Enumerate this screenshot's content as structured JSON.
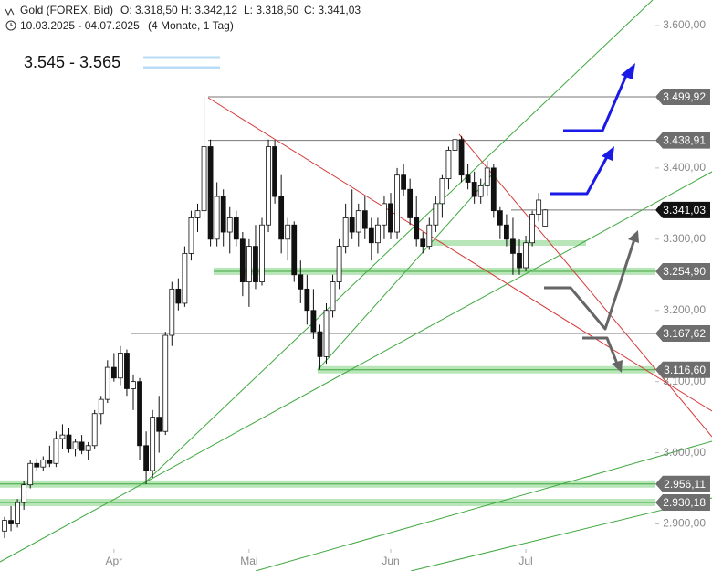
{
  "chart_data": {
    "type": "candlestick",
    "title": "Gold (FOREX, Bid)",
    "ohlc_header": [
      "O: 3.318,50",
      "H: 3.342,12",
      "L: 3.318,50",
      "C: 3.341,03"
    ],
    "date_range": "10.03.2025 - 04.07.2025",
    "period": "(4 Monate, 1 Tag)",
    "target_zone": "3.545 - 3.565",
    "categories": [
      null,
      null,
      null,
      null,
      null,
      null,
      null,
      null,
      null,
      null,
      null,
      null,
      null,
      null,
      null,
      null,
      null,
      "Apr",
      null,
      null,
      null,
      null,
      null,
      null,
      null,
      null,
      null,
      null,
      null,
      null,
      null,
      null,
      null,
      null,
      null,
      null,
      null,
      null,
      "Mai",
      null,
      null,
      null,
      null,
      null,
      null,
      null,
      null,
      null,
      null,
      null,
      null,
      null,
      null,
      null,
      null,
      null,
      null,
      null,
      null,
      null,
      "Jun",
      null,
      null,
      null,
      null,
      null,
      null,
      null,
      null,
      null,
      null,
      null,
      null,
      null,
      null,
      null,
      null,
      null,
      null,
      null,
      null,
      "Jul",
      null,
      null,
      null
    ],
    "open": [
      2890,
      2905,
      2900,
      2930,
      2955,
      2985,
      2980,
      2990,
      2985,
      3020,
      3025,
      3005,
      3015,
      3003,
      3010,
      3055,
      3075,
      3120,
      3105,
      3140,
      3090,
      3100,
      3010,
      2975,
      3050,
      3030,
      3165,
      3230,
      3210,
      3280,
      3330,
      3340,
      3430,
      3300,
      3360,
      3310,
      3330,
      3300,
      3240,
      3290,
      3240,
      3320,
      3430,
      3360,
      3300,
      3320,
      3250,
      3230,
      3200,
      3170,
      3135,
      3200,
      3240,
      3290,
      3330,
      3310,
      3340,
      3315,
      3295,
      3320,
      3350,
      3310,
      3390,
      3370,
      3330,
      3300,
      3290,
      3320,
      3350,
      3385,
      3425,
      3440,
      3390,
      3380,
      3360,
      3375,
      3400,
      3340,
      3320,
      3300,
      3280,
      3260,
      3295,
      3335,
      3318.5
    ],
    "high": [
      2910,
      2925,
      2935,
      2960,
      2990,
      2992,
      2995,
      3010,
      3030,
      3040,
      3035,
      3020,
      3025,
      3015,
      3060,
      3080,
      3130,
      3140,
      3150,
      3145,
      3110,
      3105,
      3030,
      3060,
      3080,
      3170,
      3240,
      3245,
      3290,
      3340,
      3350,
      3500,
      3440,
      3380,
      3370,
      3345,
      3340,
      3310,
      3300,
      3320,
      3330,
      3440,
      3439,
      3390,
      3330,
      3325,
      3270,
      3250,
      3230,
      3180,
      3210,
      3250,
      3300,
      3350,
      3370,
      3350,
      3360,
      3330,
      3330,
      3360,
      3365,
      3400,
      3405,
      3385,
      3360,
      3310,
      3330,
      3360,
      3390,
      3430,
      3452,
      3445,
      3405,
      3395,
      3385,
      3410,
      3405,
      3345,
      3335,
      3330,
      3300,
      3305,
      3340,
      3365,
      3342.12
    ],
    "low": [
      2880,
      2890,
      2895,
      2920,
      2950,
      2975,
      2975,
      2980,
      2980,
      3005,
      3000,
      2995,
      2998,
      2990,
      3005,
      3040,
      3070,
      3100,
      3095,
      3080,
      3060,
      2990,
      2956,
      2965,
      3000,
      3025,
      3150,
      3200,
      3205,
      3270,
      3310,
      3330,
      3290,
      3290,
      3290,
      3280,
      3290,
      3220,
      3205,
      3230,
      3235,
      3310,
      3350,
      3280,
      3270,
      3240,
      3210,
      3180,
      3160,
      3117,
      3125,
      3190,
      3230,
      3280,
      3300,
      3290,
      3300,
      3270,
      3280,
      3300,
      3300,
      3300,
      3360,
      3320,
      3290,
      3280,
      3285,
      3310,
      3330,
      3370,
      3400,
      3380,
      3370,
      3350,
      3350,
      3360,
      3330,
      3300,
      3290,
      3250,
      3250,
      3255,
      3290,
      3325,
      3318.5
    ],
    "close": [
      2905,
      2900,
      2930,
      2955,
      2985,
      2980,
      2990,
      2985,
      3020,
      3025,
      3005,
      3015,
      3003,
      3010,
      3055,
      3075,
      3120,
      3105,
      3140,
      3090,
      3100,
      3010,
      2975,
      3050,
      3030,
      3165,
      3230,
      3210,
      3280,
      3330,
      3340,
      3430,
      3300,
      3360,
      3310,
      3330,
      3300,
      3240,
      3290,
      3240,
      3320,
      3430,
      3360,
      3300,
      3320,
      3250,
      3230,
      3200,
      3170,
      3135,
      3200,
      3240,
      3290,
      3330,
      3310,
      3340,
      3315,
      3295,
      3320,
      3350,
      3310,
      3390,
      3370,
      3330,
      3300,
      3290,
      3320,
      3350,
      3385,
      3425,
      3440,
      3390,
      3380,
      3360,
      3375,
      3400,
      3340,
      3320,
      3300,
      3280,
      3260,
      3295,
      3335,
      3355,
      3341.03
    ],
    "up_color": "#ffffff",
    "down_color": "#111111",
    "ylim": [
      2866,
      3636
    ],
    "yticks": [
      {
        "value": 2900,
        "label": "2.900,00"
      },
      {
        "value": 3000,
        "label": "3.000,00"
      },
      {
        "value": 3100,
        "label": "3.100,00"
      },
      {
        "value": 3200,
        "label": "3.200,00"
      },
      {
        "value": 3300,
        "label": "3.300,00"
      },
      {
        "value": 3400,
        "label": "3.400,00"
      },
      {
        "value": 3600,
        "label": "3.600,00"
      }
    ],
    "price_levels": [
      {
        "value": 3499.92,
        "label": "3.499,92"
      },
      {
        "value": 3438.91,
        "label": "3.438,91"
      },
      {
        "value": 3341.03,
        "label": "3.341,03"
      },
      {
        "value": 3254.9,
        "label": "3.254,90"
      },
      {
        "value": 3167.62,
        "label": "3.167,62"
      },
      {
        "value": 3116.6,
        "label": "3.116,60"
      },
      {
        "value": 2956.11,
        "label": "2.956,11"
      },
      {
        "value": 2930.18,
        "label": "2.930,18"
      }
    ]
  }
}
